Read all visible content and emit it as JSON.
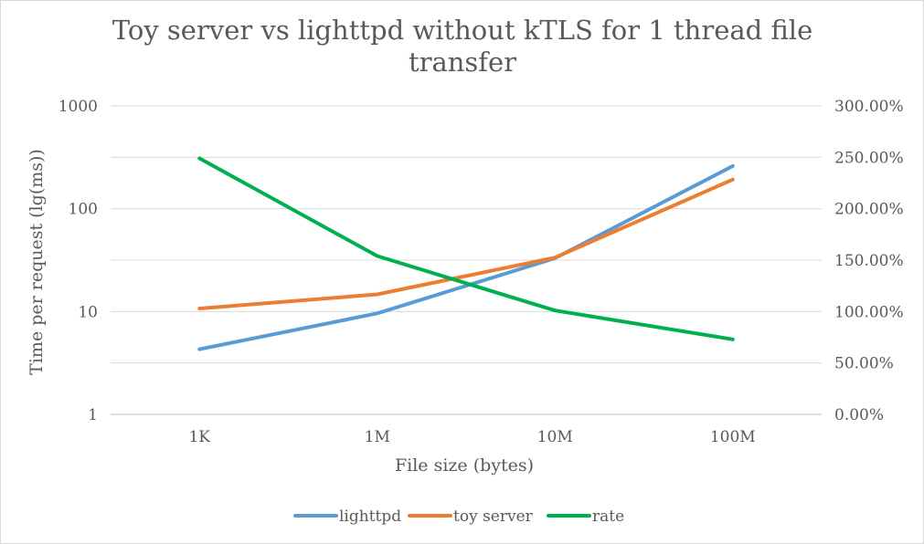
{
  "chart_data": {
    "type": "line",
    "title_lines": [
      "Toy server vs lighttpd without kTLS for 1 thread file",
      "transfer"
    ],
    "xlabel": "File size (bytes)",
    "ylabel": "Time per request (lg(ms))",
    "categories": [
      "1K",
      "1M",
      "10M",
      "100M"
    ],
    "y_scale": "log",
    "ylim": [
      1,
      1000
    ],
    "y_ticks": [
      "1000",
      "100",
      "10",
      "1"
    ],
    "y_tick_values": [
      1000,
      100,
      10,
      1
    ],
    "y2lim": [
      0,
      3
    ],
    "y2_ticks": [
      "300.00%",
      "250.00%",
      "200.00%",
      "150.00%",
      "100.00%",
      "50.00%",
      "0.00%"
    ],
    "y2_tick_values": [
      3,
      2.5,
      2,
      1.5,
      1,
      0.5,
      0
    ],
    "grid": true,
    "legend_position": "bottom",
    "series": [
      {
        "name": "lighttpd",
        "axis": "left",
        "color": "#5b9bd5",
        "values": [
          4.3,
          9.6,
          33,
          260
        ]
      },
      {
        "name": "toy server",
        "axis": "left",
        "color": "#ed7d31",
        "values": [
          10.7,
          14.7,
          33.5,
          192
        ]
      },
      {
        "name": "rate",
        "axis": "right",
        "color": "#00b050",
        "values": [
          2.49,
          1.54,
          1.01,
          0.73
        ]
      }
    ]
  }
}
